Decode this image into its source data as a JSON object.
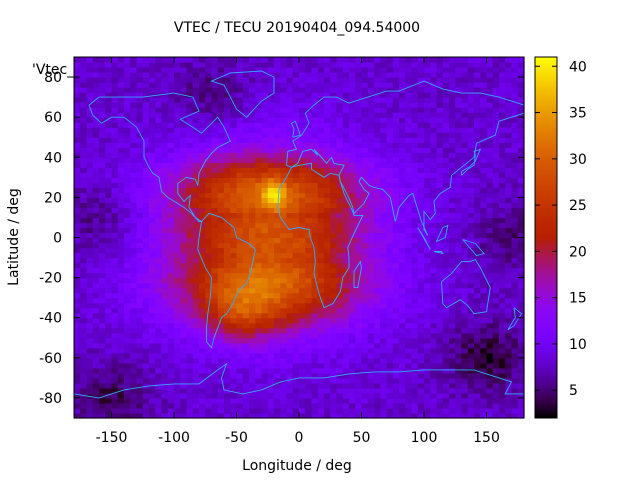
{
  "chart_data": {
    "type": "heatmap",
    "title": "VTEC / TECU 20190404_094.54000",
    "xlabel": "Longitude / deg",
    "ylabel": "Latitude / deg",
    "key_label": "'Vtec_",
    "xlim": [
      -180,
      180
    ],
    "ylim": [
      -90,
      90
    ],
    "xticks": [
      -150,
      -100,
      -50,
      0,
      50,
      100,
      150
    ],
    "yticks": [
      -80,
      -60,
      -40,
      -20,
      0,
      20,
      40,
      60,
      80
    ],
    "colorbar": {
      "range": [
        2,
        41
      ],
      "ticks": [
        5,
        10,
        15,
        20,
        25,
        30,
        35,
        40
      ],
      "palette": "gnuplot-pm3d"
    },
    "grid": false,
    "value_model": {
      "background_tecu": 8,
      "peak": {
        "lon": -20,
        "lat": 22,
        "tecu": 40
      },
      "anomaly_crest": {
        "lon_center": -25,
        "lat_north": 20,
        "lat_south": -20,
        "tecu": 31
      },
      "low_regions": [
        {
          "lon": 150,
          "lat": -60,
          "tecu": 3
        },
        {
          "lon": -150,
          "lat": -80,
          "tecu": 4
        },
        {
          "lon": 170,
          "lat": 0,
          "tecu": 5
        },
        {
          "lon": -160,
          "lat": 10,
          "tecu": 5
        },
        {
          "lon": -70,
          "lat": 70,
          "tecu": 5
        }
      ]
    }
  }
}
